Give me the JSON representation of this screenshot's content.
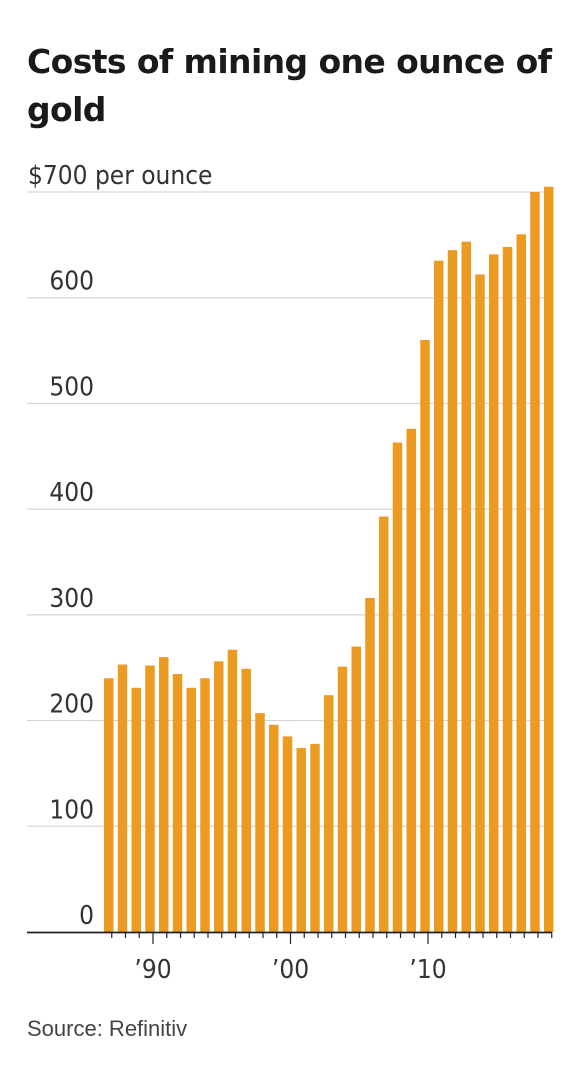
{
  "title": "Costs of mining one ounce of gold",
  "source": "Source: Refinitiv",
  "colors": {
    "bar": "#EB9A22",
    "grid": "#d6d6d6",
    "axis": "#222222",
    "text": "#333333"
  },
  "chart_data": {
    "type": "bar",
    "title": "Costs of mining one ounce of gold",
    "ylabel": "",
    "xlabel": "",
    "ylim": [
      0,
      700
    ],
    "y_ticks": [
      0,
      100,
      200,
      300,
      400,
      500,
      600,
      700
    ],
    "y_tick_labels": [
      "0",
      "100",
      "200",
      "300",
      "400",
      "500",
      "600",
      "$700 per ounce"
    ],
    "x_tick_labels": [
      {
        "year": 1990,
        "label": "’90"
      },
      {
        "year": 2000,
        "label": "’00"
      },
      {
        "year": 2010,
        "label": "’10"
      }
    ],
    "grid": true,
    "categories": [
      1987,
      1988,
      1989,
      1990,
      1991,
      1992,
      1993,
      1994,
      1995,
      1996,
      1997,
      1998,
      1999,
      2000,
      2001,
      2002,
      2003,
      2004,
      2005,
      2006,
      2007,
      2008,
      2009,
      2010,
      2011,
      2012,
      2013,
      2014,
      2015,
      2016,
      2017,
      2018,
      2019
    ],
    "values": [
      240,
      253,
      231,
      252,
      260,
      244,
      231,
      240,
      256,
      267,
      249,
      207,
      196,
      185,
      174,
      178,
      224,
      251,
      270,
      316,
      393,
      463,
      476,
      560,
      635,
      645,
      653,
      622,
      641,
      648,
      660,
      700,
      705
    ]
  }
}
